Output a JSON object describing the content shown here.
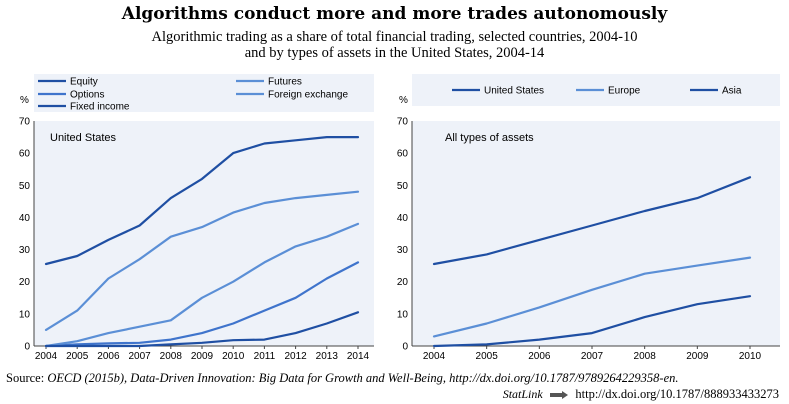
{
  "title": "Algorithms conduct more and more trades autonomously",
  "subtitle_line1": "Algorithmic trading as a share of total financial trading, selected countries, 2004-10",
  "subtitle_line2": "and by types of assets in the United States, 2004-14",
  "source": {
    "label": "Source:",
    "citation": "OECD (2015b), Data-Driven Innovation: Big Data for Growth and Well-Being, http://dx.doi.org/10.1787/9789264229358-en."
  },
  "statlink": {
    "brand": "StatLink",
    "url": "http://dx.doi.org/10.1787/888933433273"
  },
  "colors": {
    "dark_blue": "#1f4fa3",
    "mid_blue": "#3f74cc",
    "light_blue": "#5b8fd6",
    "panel_bg": "#eef2f9",
    "axis": "#444444"
  },
  "chart_data": [
    {
      "type": "line",
      "panel_label": "United States",
      "ylabel": "%",
      "ylim": [
        0,
        70
      ],
      "yticks": [
        0,
        10,
        20,
        30,
        40,
        50,
        60,
        70
      ],
      "x": [
        "2004",
        "2005",
        "2006",
        "2007",
        "2008",
        "2009",
        "2010",
        "2011",
        "2012",
        "2013",
        "2014"
      ],
      "legend_placement": "top",
      "series": [
        {
          "name": "Equity",
          "style": "dark",
          "values": [
            25.5,
            28,
            33,
            37.5,
            46,
            52,
            60,
            63,
            64,
            65,
            65
          ]
        },
        {
          "name": "Futures",
          "style": "light",
          "values": [
            5,
            11,
            21,
            27,
            34,
            37,
            41.5,
            44.5,
            46,
            47,
            48
          ]
        },
        {
          "name": "Options",
          "style": "mid",
          "values": [
            0,
            0.5,
            0.8,
            1,
            2,
            4,
            7,
            11,
            15,
            21,
            26
          ]
        },
        {
          "name": "Foreign exchange",
          "style": "light",
          "values": [
            0,
            1.5,
            4,
            6,
            8,
            15,
            20,
            26,
            31,
            34,
            38
          ]
        },
        {
          "name": "Fixed income",
          "style": "dark",
          "values": [
            0,
            0,
            0,
            0,
            0.5,
            1,
            1.8,
            2,
            4,
            7,
            10.5
          ]
        }
      ]
    },
    {
      "type": "line",
      "panel_label": "All types of assets",
      "ylabel": "%",
      "ylim": [
        0,
        70
      ],
      "yticks": [
        0,
        10,
        20,
        30,
        40,
        50,
        60,
        70
      ],
      "x": [
        "2004",
        "2005",
        "2006",
        "2007",
        "2008",
        "2009",
        "2010"
      ],
      "legend_placement": "top",
      "series": [
        {
          "name": "United States",
          "style": "dark",
          "values": [
            25.5,
            28.5,
            33,
            37.5,
            42,
            46,
            52.5
          ]
        },
        {
          "name": "Europe",
          "style": "light",
          "values": [
            3,
            7,
            12,
            17.5,
            22.5,
            25,
            27.5
          ]
        },
        {
          "name": "Asia",
          "style": "dark",
          "values": [
            0,
            0.5,
            2,
            4,
            9,
            13,
            15.5
          ]
        }
      ]
    }
  ]
}
